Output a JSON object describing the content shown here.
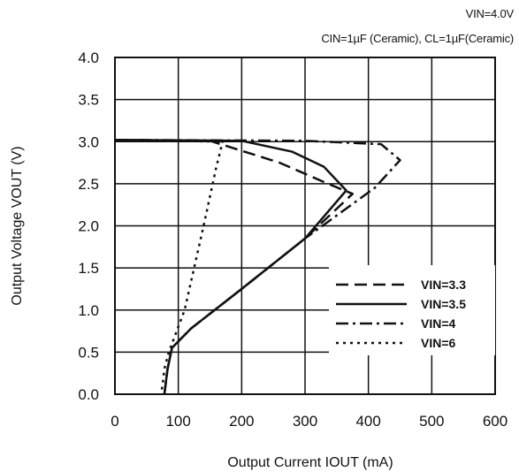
{
  "conditions": {
    "line1": "VIN=4.0V",
    "line2": "CIN=1µF (Ceramic), CL=1µF(Ceramic)"
  },
  "chart_data": {
    "type": "line",
    "xlabel": "Output Current IOUT (mA)",
    "ylabel": "Output Voltage VOUT (V)",
    "xlim": [
      0,
      600
    ],
    "ylim": [
      0,
      4.0
    ],
    "xticks": [
      "0",
      "100",
      "200",
      "300",
      "400",
      "500",
      "600"
    ],
    "yticks": [
      "0.0",
      "0.5",
      "1.0",
      "1.5",
      "2.0",
      "2.5",
      "3.0",
      "3.5",
      "4.0"
    ],
    "grid": true,
    "legend_position": "bottom-right",
    "series": [
      {
        "name": "VIN=3.3",
        "dash": "dashed",
        "x": [
          0,
          150,
          260,
          330,
          375,
          300,
          200,
          120,
          90,
          83,
          78
        ],
        "y": [
          3.02,
          3.01,
          2.75,
          2.52,
          2.38,
          1.85,
          1.25,
          0.78,
          0.55,
          0.3,
          0.0
        ]
      },
      {
        "name": "VIN=3.5",
        "dash": "solid",
        "x": [
          0,
          200,
          280,
          330,
          365,
          300,
          200,
          120,
          90,
          83,
          78
        ],
        "y": [
          3.02,
          3.01,
          2.88,
          2.7,
          2.42,
          1.85,
          1.25,
          0.78,
          0.55,
          0.3,
          0.0
        ]
      },
      {
        "name": "VIN=4",
        "dash": "dash-dot",
        "x": [
          0,
          300,
          420,
          450,
          410,
          300,
          200,
          120,
          90,
          83,
          78
        ],
        "y": [
          3.02,
          3.01,
          2.97,
          2.78,
          2.45,
          1.85,
          1.25,
          0.78,
          0.55,
          0.3,
          0.0
        ]
      },
      {
        "name": "VIN=6",
        "dash": "dotted",
        "x": [
          0,
          170,
          160,
          140,
          110,
          85,
          78,
          75,
          72
        ],
        "y": [
          3.02,
          3.0,
          2.7,
          2.0,
          1.0,
          0.5,
          0.3,
          0.1,
          0.0
        ]
      }
    ]
  }
}
